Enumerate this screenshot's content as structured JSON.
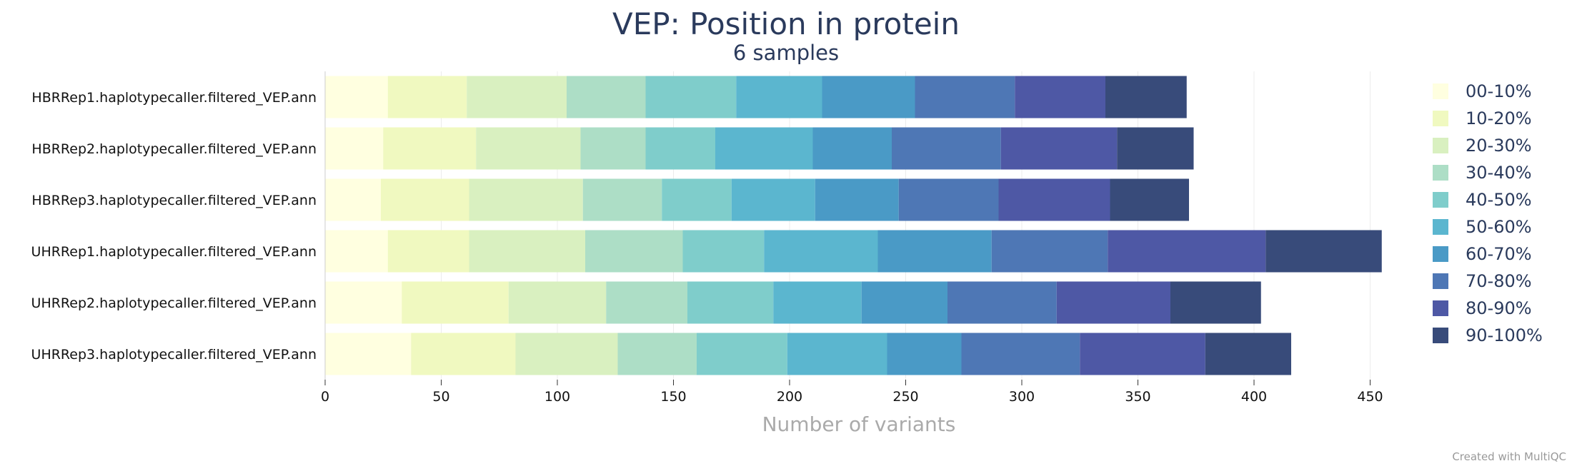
{
  "chart_data": {
    "type": "bar",
    "orientation": "horizontal",
    "stacked": true,
    "title": "VEP: Position in protein",
    "subtitle": "6 samples",
    "xlabel": "Number of variants",
    "xlim": [
      0,
      460
    ],
    "xticks": [
      0,
      50,
      100,
      150,
      200,
      250,
      300,
      350,
      400,
      450
    ],
    "grid": true,
    "legend_position": "right",
    "categories": [
      "HBRRep1.haplotypecaller.filtered_VEP.ann",
      "HBRRep2.haplotypecaller.filtered_VEP.ann",
      "HBRRep3.haplotypecaller.filtered_VEP.ann",
      "UHRRep1.haplotypecaller.filtered_VEP.ann",
      "UHRRep2.haplotypecaller.filtered_VEP.ann",
      "UHRRep3.haplotypecaller.filtered_VEP.ann"
    ],
    "series": [
      {
        "name": "00-10%",
        "color": "#ffffe0",
        "values": [
          27,
          25,
          24,
          27,
          33,
          37
        ]
      },
      {
        "name": "10-20%",
        "color": "#f0f9c0",
        "values": [
          34,
          40,
          38,
          35,
          46,
          45
        ]
      },
      {
        "name": "20-30%",
        "color": "#d9f0c0",
        "values": [
          43,
          45,
          49,
          50,
          42,
          44
        ]
      },
      {
        "name": "30-40%",
        "color": "#addec6",
        "values": [
          34,
          28,
          34,
          42,
          35,
          34
        ]
      },
      {
        "name": "40-50%",
        "color": "#7fcdcb",
        "values": [
          39,
          30,
          30,
          35,
          37,
          39
        ]
      },
      {
        "name": "50-60%",
        "color": "#5bb6cf",
        "values": [
          37,
          42,
          36,
          49,
          38,
          43
        ]
      },
      {
        "name": "60-70%",
        "color": "#4a9ac6",
        "values": [
          40,
          34,
          36,
          49,
          37,
          32
        ]
      },
      {
        "name": "70-80%",
        "color": "#4e77b5",
        "values": [
          43,
          47,
          43,
          50,
          47,
          51
        ]
      },
      {
        "name": "80-90%",
        "color": "#4e58a5",
        "values": [
          39,
          50,
          48,
          68,
          49,
          54
        ]
      },
      {
        "name": "90-100%",
        "color": "#384b7a",
        "values": [
          35,
          33,
          34,
          50,
          39,
          37
        ]
      }
    ]
  },
  "credit": "Created with MultiQC"
}
